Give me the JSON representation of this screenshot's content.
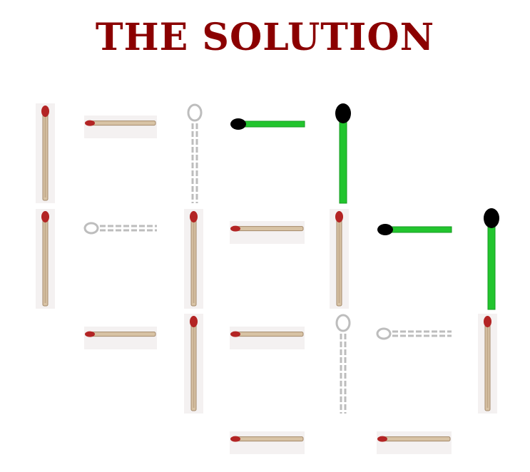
{
  "title": "THE SOLUTION",
  "colors": {
    "title": "#8b0000",
    "wood": "#d8c3a5",
    "wood_edge": "#a4896a",
    "head": "#b32424",
    "moved_stick": "#22c52e",
    "moved_head": "#000000",
    "removed_outline": "#bdbdbd",
    "card_bg": "#f4f1f1"
  },
  "legend_states": [
    "match",
    "moved",
    "removed"
  ],
  "matches": [
    {
      "id": "m1",
      "orientation": "vertical",
      "state": "match"
    },
    {
      "id": "m2",
      "orientation": "horizontal",
      "state": "match"
    },
    {
      "id": "m3",
      "orientation": "vertical",
      "state": "removed"
    },
    {
      "id": "m4",
      "orientation": "horizontal",
      "state": "moved"
    },
    {
      "id": "m5",
      "orientation": "vertical",
      "state": "moved"
    },
    {
      "id": "m6",
      "orientation": "vertical",
      "state": "match"
    },
    {
      "id": "m7",
      "orientation": "horizontal",
      "state": "removed"
    },
    {
      "id": "m8",
      "orientation": "vertical",
      "state": "match"
    },
    {
      "id": "m9",
      "orientation": "horizontal",
      "state": "match"
    },
    {
      "id": "m10",
      "orientation": "vertical",
      "state": "match"
    },
    {
      "id": "m11",
      "orientation": "horizontal",
      "state": "moved"
    },
    {
      "id": "m12",
      "orientation": "vertical",
      "state": "moved"
    },
    {
      "id": "m13",
      "orientation": "horizontal",
      "state": "match"
    },
    {
      "id": "m14",
      "orientation": "vertical",
      "state": "match"
    },
    {
      "id": "m15",
      "orientation": "horizontal",
      "state": "match"
    },
    {
      "id": "m16",
      "orientation": "vertical",
      "state": "removed"
    },
    {
      "id": "m17",
      "orientation": "horizontal",
      "state": "removed"
    },
    {
      "id": "m18",
      "orientation": "vertical",
      "state": "match"
    },
    {
      "id": "m19",
      "orientation": "horizontal",
      "state": "match"
    },
    {
      "id": "m20",
      "orientation": "horizontal",
      "state": "match"
    }
  ]
}
